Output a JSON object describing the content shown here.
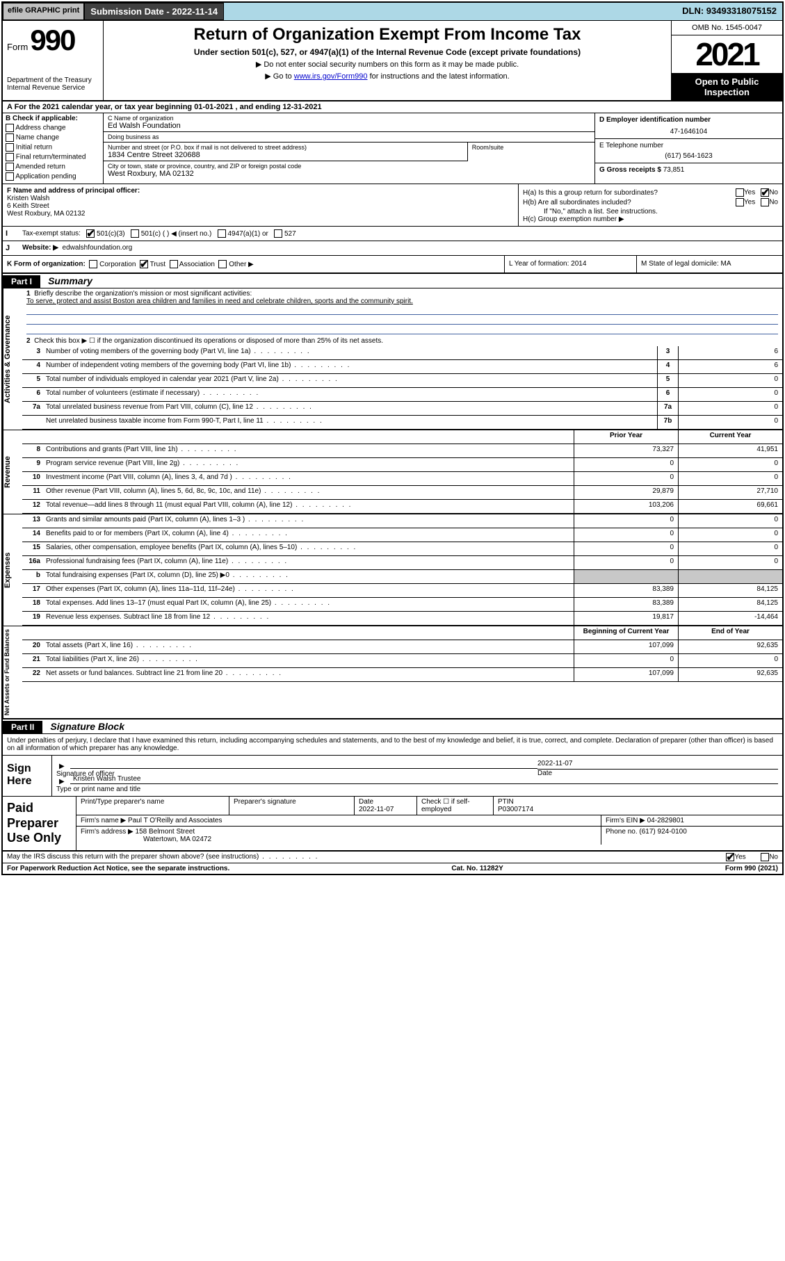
{
  "topbar": {
    "efile": "efile GRAPHIC print",
    "submission": "Submission Date - 2022-11-14",
    "dln": "DLN: 93493318075152"
  },
  "header": {
    "form_prefix": "Form",
    "form_num": "990",
    "dept": "Department of the Treasury",
    "irs": "Internal Revenue Service",
    "title": "Return of Organization Exempt From Income Tax",
    "sub": "Under section 501(c), 527, or 4947(a)(1) of the Internal Revenue Code (except private foundations)",
    "sub2": "▶ Do not enter social security numbers on this form as it may be made public.",
    "sub3_pre": "▶ Go to ",
    "sub3_link": "www.irs.gov/Form990",
    "sub3_post": " for instructions and the latest information.",
    "omb": "OMB No. 1545-0047",
    "year": "2021",
    "open": "Open to Public Inspection"
  },
  "rowA": "A For the 2021 calendar year, or tax year beginning 01-01-2021   , and ending 12-31-2021",
  "colB": {
    "title": "B Check if applicable:",
    "opts": [
      "Address change",
      "Name change",
      "Initial return",
      "Final return/terminated",
      "Amended return",
      "Application pending"
    ]
  },
  "colC": {
    "name_lbl": "C Name of organization",
    "name": "Ed Walsh Foundation",
    "dba_lbl": "Doing business as",
    "dba": "",
    "street_lbl": "Number and street (or P.O. box if mail is not delivered to street address)",
    "room_lbl": "Room/suite",
    "street": "1834 Centre Street 320688",
    "city_lbl": "City or town, state or province, country, and ZIP or foreign postal code",
    "city": "West Roxbury, MA  02132"
  },
  "colD": {
    "lbl": "D Employer identification number",
    "val": "47-1646104"
  },
  "colE": {
    "lbl": "E Telephone number",
    "val": "(617) 564-1623"
  },
  "colG": {
    "lbl": "G Gross receipts $",
    "val": "73,851"
  },
  "colF": {
    "lbl": "F Name and address of principal officer:",
    "name": "Kristen Walsh",
    "street": "6 Keith Street",
    "city": "West Roxbury, MA  02132"
  },
  "colH": {
    "a": "H(a)  Is this a group return for subordinates?",
    "b": "H(b)  Are all subordinates included?",
    "b2": "If \"No,\" attach a list. See instructions.",
    "c": "H(c)  Group exemption number ▶"
  },
  "rowI": {
    "lbl": "Tax-exempt status:",
    "opts": [
      "501(c)(3)",
      "501(c) (  ) ◀ (insert no.)",
      "4947(a)(1) or",
      "527"
    ]
  },
  "rowJ": {
    "lbl": "Website: ▶",
    "val": "edwalshfoundation.org"
  },
  "rowK": {
    "lbl": "K Form of organization:",
    "opts": [
      "Corporation",
      "Trust",
      "Association",
      "Other ▶"
    ]
  },
  "rowL": "L Year of formation: 2014",
  "rowM": "M State of legal domicile: MA",
  "part1": {
    "hdr": "Part I",
    "title": "Summary"
  },
  "vtabs": [
    "Activities & Governance",
    "Revenue",
    "Expenses",
    "Net Assets or Fund Balances"
  ],
  "mission": {
    "q": "Briefly describe the organization's mission or most significant activities:",
    "a": "To serve, protect and assist Boston area children and families in need and celebrate children, sports and the community spirit."
  },
  "line2": "Check this box ▶ ☐  if the organization discontinued its operations or disposed of more than 25% of its net assets.",
  "gov_lines": [
    {
      "n": "3",
      "t": "Number of voting members of the governing body (Part VI, line 1a)",
      "b": "3",
      "v": "6"
    },
    {
      "n": "4",
      "t": "Number of independent voting members of the governing body (Part VI, line 1b)",
      "b": "4",
      "v": "6"
    },
    {
      "n": "5",
      "t": "Total number of individuals employed in calendar year 2021 (Part V, line 2a)",
      "b": "5",
      "v": "0"
    },
    {
      "n": "6",
      "t": "Total number of volunteers (estimate if necessary)",
      "b": "6",
      "v": "0"
    },
    {
      "n": "7a",
      "t": "Total unrelated business revenue from Part VIII, column (C), line 12",
      "b": "7a",
      "v": "0"
    },
    {
      "n": "",
      "t": "Net unrelated business taxable income from Form 990-T, Part I, line 11",
      "b": "7b",
      "v": "0"
    }
  ],
  "col_hdr": {
    "prior": "Prior Year",
    "curr": "Current Year"
  },
  "rev_lines": [
    {
      "n": "8",
      "t": "Contributions and grants (Part VIII, line 1h)",
      "p": "73,327",
      "c": "41,951"
    },
    {
      "n": "9",
      "t": "Program service revenue (Part VIII, line 2g)",
      "p": "0",
      "c": "0"
    },
    {
      "n": "10",
      "t": "Investment income (Part VIII, column (A), lines 3, 4, and 7d )",
      "p": "0",
      "c": "0"
    },
    {
      "n": "11",
      "t": "Other revenue (Part VIII, column (A), lines 5, 6d, 8c, 9c, 10c, and 11e)",
      "p": "29,879",
      "c": "27,710"
    },
    {
      "n": "12",
      "t": "Total revenue—add lines 8 through 11 (must equal Part VIII, column (A), line 12)",
      "p": "103,206",
      "c": "69,661"
    }
  ],
  "exp_lines": [
    {
      "n": "13",
      "t": "Grants and similar amounts paid (Part IX, column (A), lines 1–3 )",
      "p": "0",
      "c": "0"
    },
    {
      "n": "14",
      "t": "Benefits paid to or for members (Part IX, column (A), line 4)",
      "p": "0",
      "c": "0"
    },
    {
      "n": "15",
      "t": "Salaries, other compensation, employee benefits (Part IX, column (A), lines 5–10)",
      "p": "0",
      "c": "0"
    },
    {
      "n": "16a",
      "t": "Professional fundraising fees (Part IX, column (A), line 11e)",
      "p": "0",
      "c": "0"
    },
    {
      "n": "b",
      "t": "Total fundraising expenses (Part IX, column (D), line 25) ▶0",
      "p": "",
      "c": "",
      "shade": true
    },
    {
      "n": "17",
      "t": "Other expenses (Part IX, column (A), lines 11a–11d, 11f–24e)",
      "p": "83,389",
      "c": "84,125"
    },
    {
      "n": "18",
      "t": "Total expenses. Add lines 13–17 (must equal Part IX, column (A), line 25)",
      "p": "83,389",
      "c": "84,125"
    },
    {
      "n": "19",
      "t": "Revenue less expenses. Subtract line 18 from line 12",
      "p": "19,817",
      "c": "-14,464"
    }
  ],
  "na_hdr": {
    "prior": "Beginning of Current Year",
    "curr": "End of Year"
  },
  "na_lines": [
    {
      "n": "20",
      "t": "Total assets (Part X, line 16)",
      "p": "107,099",
      "c": "92,635"
    },
    {
      "n": "21",
      "t": "Total liabilities (Part X, line 26)",
      "p": "0",
      "c": "0"
    },
    {
      "n": "22",
      "t": "Net assets or fund balances. Subtract line 21 from line 20",
      "p": "107,099",
      "c": "92,635"
    }
  ],
  "part2": {
    "hdr": "Part II",
    "title": "Signature Block"
  },
  "sig_text": "Under penalties of perjury, I declare that I have examined this return, including accompanying schedules and statements, and to the best of my knowledge and belief, it is true, correct, and complete. Declaration of preparer (other than officer) is based on all information of which preparer has any knowledge.",
  "sign": {
    "lbl": "Sign Here",
    "sig_lbl": "Signature of officer",
    "date_lbl": "Date",
    "date": "2022-11-07",
    "name": "Kristen Walsh  Trustee",
    "name_lbl": "Type or print name and title"
  },
  "prep": {
    "lbl": "Paid Preparer Use Only",
    "r1": {
      "c1": "Print/Type preparer's name",
      "c2": "Preparer's signature",
      "c3_lbl": "Date",
      "c3": "2022-11-07",
      "c4": "Check ☐ if self-employed",
      "c5_lbl": "PTIN",
      "c5": "P03007174"
    },
    "r2": {
      "c1_lbl": "Firm's name   ▶",
      "c1": "Paul T O'Reilly and Associates",
      "c2_lbl": "Firm's EIN ▶",
      "c2": "04-2829801"
    },
    "r3": {
      "c1_lbl": "Firm's address ▶",
      "c1": "158 Belmont Street",
      "c1b": "Watertown, MA  02472",
      "c2_lbl": "Phone no.",
      "c2": "(617) 924-0100"
    }
  },
  "foot": {
    "q": "May the IRS discuss this return with the preparer shown above? (see instructions)",
    "paperwork": "For Paperwork Reduction Act Notice, see the separate instructions.",
    "cat": "Cat. No. 11282Y",
    "form": "Form 990 (2021)"
  }
}
